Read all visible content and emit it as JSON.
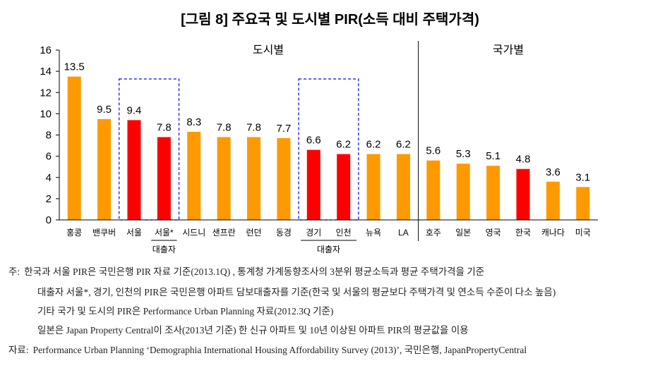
{
  "chart_data": {
    "type": "bar",
    "title": "[그림 8] 주요국 및 도시별 PIR(소득 대비 주택가격)",
    "categories": [
      "홍콩",
      "밴쿠버",
      "서울",
      "서울*",
      "시드니",
      "샌프란",
      "런던",
      "동경",
      "경기",
      "인천",
      "뉴욕",
      "LA",
      "호주",
      "일본",
      "영국",
      "한국",
      "캐나다",
      "미국"
    ],
    "values": [
      13.5,
      9.5,
      9.4,
      7.8,
      8.3,
      7.8,
      7.8,
      7.7,
      6.6,
      6.2,
      6.2,
      6.2,
      5.6,
      5.3,
      5.1,
      4.8,
      3.6,
      3.1
    ],
    "bar_colors": [
      "#FF9900",
      "#FF9900",
      "#FF0000",
      "#FF0000",
      "#FF9900",
      "#FF9900",
      "#FF9900",
      "#FF9900",
      "#FF0000",
      "#FF0000",
      "#FF9900",
      "#FF9900",
      "#FF9900",
      "#FF9900",
      "#FF9900",
      "#FF0000",
      "#FF9900",
      "#FF9900"
    ],
    "ylim": [
      0,
      16
    ],
    "yticks": [
      0,
      2,
      4,
      6,
      8,
      10,
      12,
      14,
      16
    ],
    "grid": false,
    "data_labels": true,
    "groups": [
      {
        "label": "도시별",
        "start": 0,
        "end": 11
      },
      {
        "label": "국가별",
        "start": 12,
        "end": 17
      }
    ],
    "subgroups": [
      {
        "label": "대출자",
        "start": 3,
        "end": 3
      },
      {
        "label": "대출자",
        "start": 8,
        "end": 9
      }
    ],
    "highlight_boxes": [
      {
        "start": 2,
        "end": 3
      },
      {
        "start": 8,
        "end": 9
      }
    ],
    "box_color": "#0000FF",
    "axis_color": "#000000"
  },
  "notes": {
    "label": "주:",
    "lines": [
      "한국과 서울 PIR은 국민은행 PIR 자료 기준(2013.1Q) , 통계청 가계동향조사의 3분위 평균소득과 평균 주택가격을 기준",
      "대출자 서울*, 경기, 인천의 PIR은 국민은행 아파트 담보대출자를 기준(한국 및 서울의 평균보다 주택가격 및 연소득 수준이 다소 높음)",
      "기타 국가 및 도시의 PIR은 Performance Urban Planning 자료(2012.3Q 기준)",
      "일본은 Japan Property Central이 조사(2013년 기준) 한 신규 아파트 및 10년 이상된 아파트 PIR의 평균값을 이용"
    ]
  },
  "source": {
    "label": "자료:",
    "text": "Performance Urban Planning ‘Demographia International Housing Affordability Survey (2013)’, 국민은행, JapanPropertyCentral"
  }
}
